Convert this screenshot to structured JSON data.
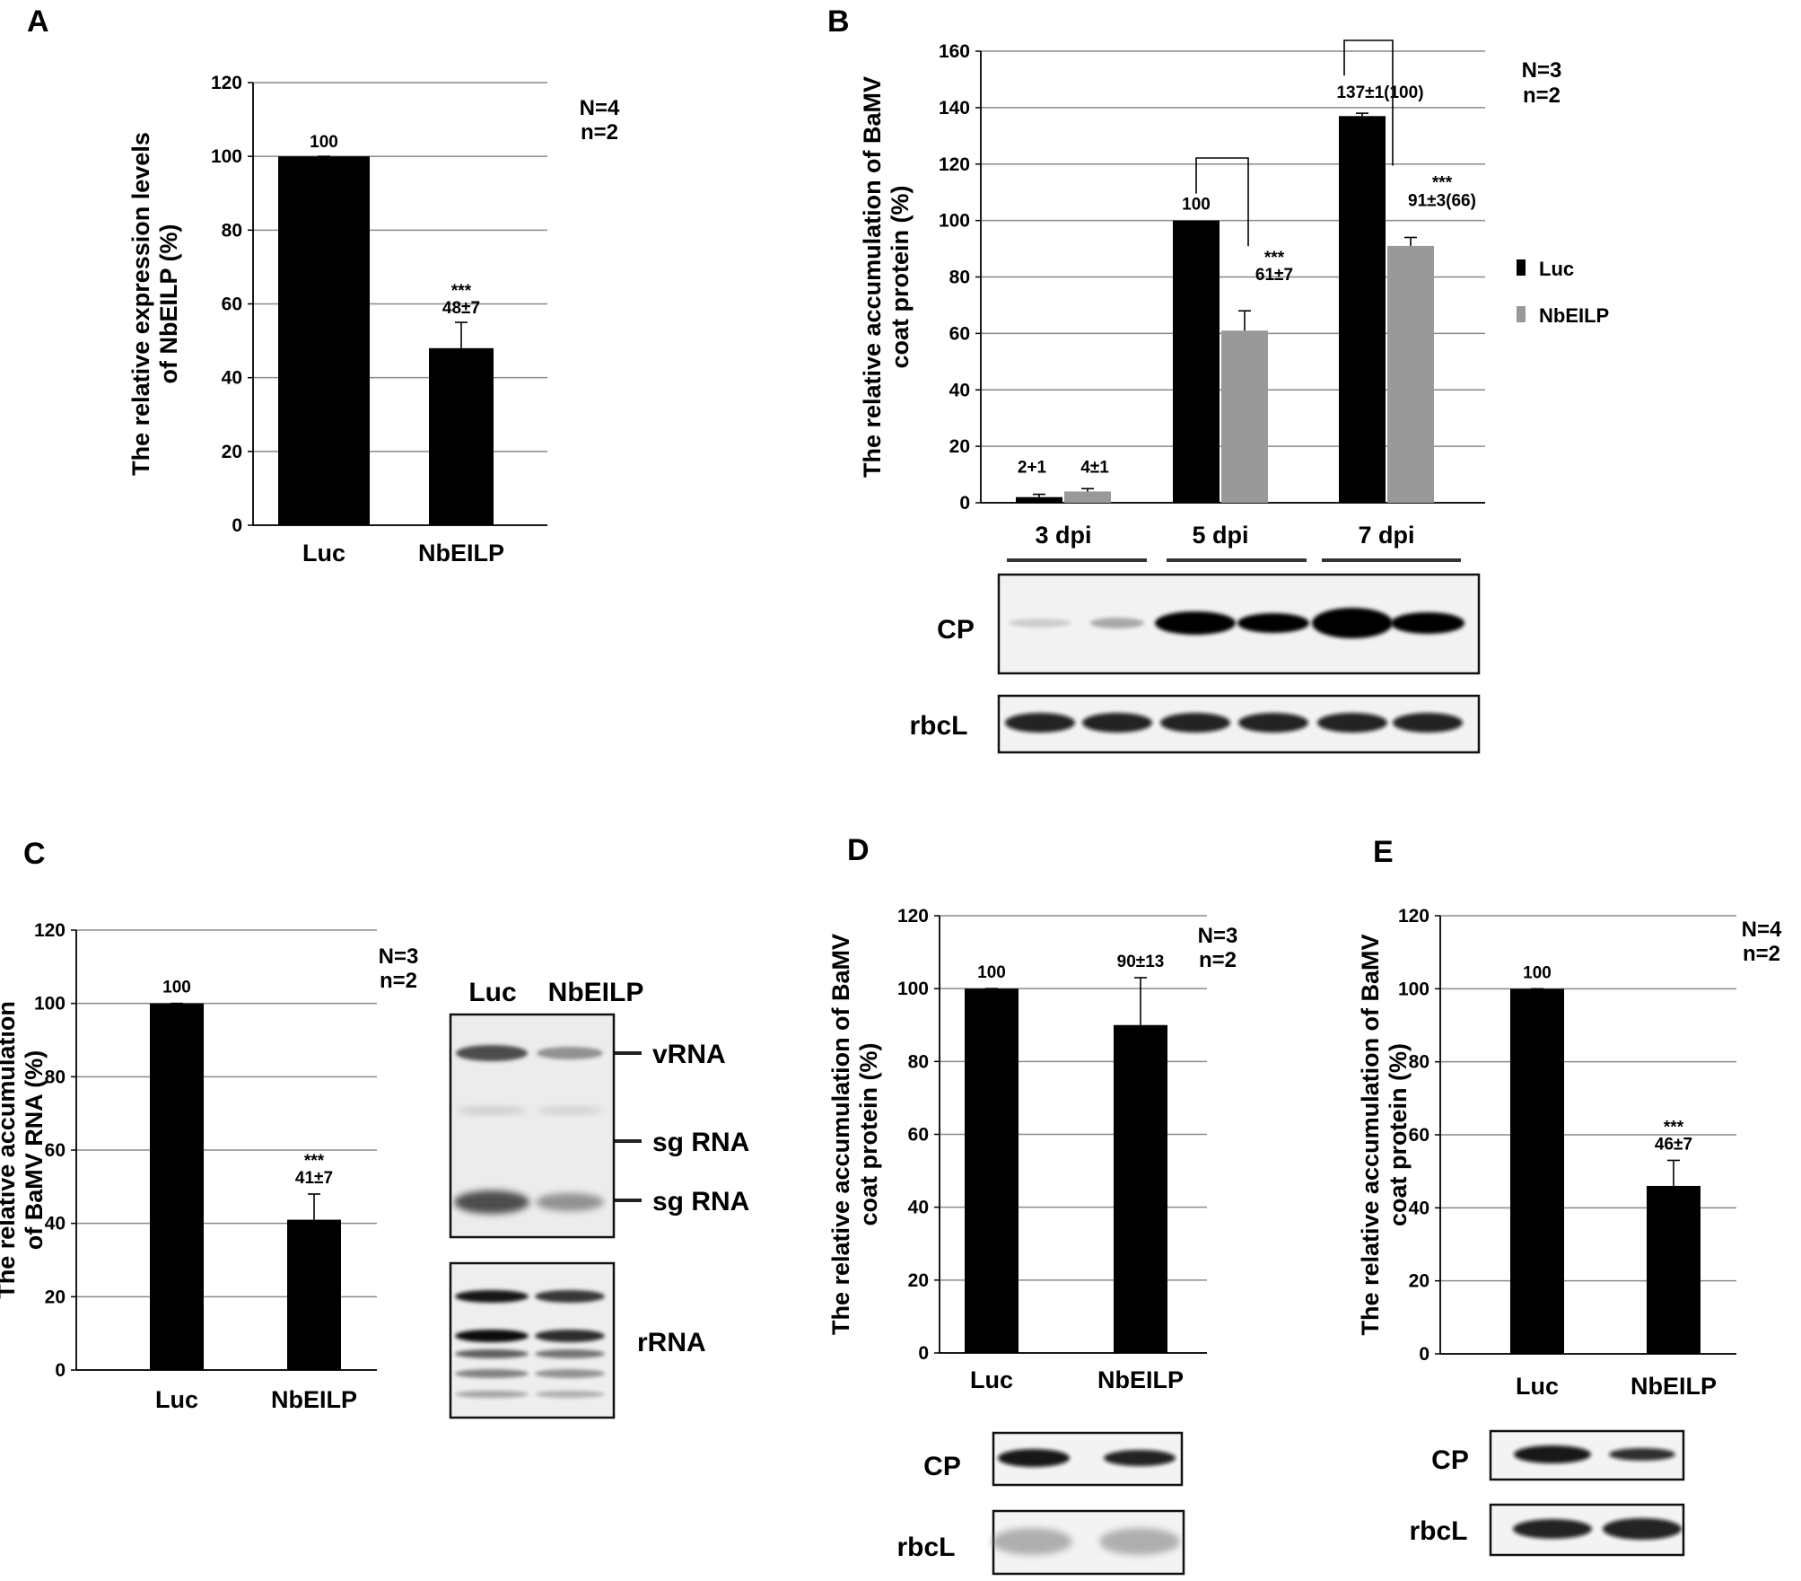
{
  "chart_data": [
    {
      "panel": "A",
      "type": "bar",
      "ylabel": "The relative expression levels of NbEILP (%)",
      "ylim": [
        0,
        120
      ],
      "yticks": [
        0,
        20,
        40,
        60,
        80,
        100,
        120
      ],
      "categories": [
        "Luc",
        "NbEILP"
      ],
      "values": [
        100,
        48
      ],
      "errors": [
        0,
        7
      ],
      "bar_labels": [
        "100",
        "48±7"
      ],
      "significance": [
        "",
        "***"
      ],
      "stats": [
        "N=4",
        "n=2"
      ],
      "bar_color": "#000000",
      "grid": true
    },
    {
      "panel": "B",
      "type": "bar",
      "ylabel": "The relative accumulation of BaMV coat protein (%)",
      "ylim": [
        0,
        160
      ],
      "yticks": [
        0,
        20,
        40,
        60,
        80,
        100,
        120,
        140,
        160
      ],
      "categories": [
        "3 dpi",
        "5 dpi",
        "7 dpi"
      ],
      "series": [
        {
          "name": "Luc",
          "color": "#000000",
          "values": [
            2,
            100,
            137
          ],
          "errors": [
            1,
            0,
            1
          ],
          "labels": [
            "2+1",
            "100",
            "137±1(100)"
          ]
        },
        {
          "name": "NbEILP",
          "color": "#999999",
          "values": [
            4,
            61,
            91
          ],
          "errors": [
            1,
            7,
            3
          ],
          "labels": [
            "4±1",
            "61±7",
            "91±3(66)"
          ]
        }
      ],
      "significance": [
        "",
        "***",
        "***"
      ],
      "stats": [
        "N=3",
        "n=2"
      ],
      "legend": "right",
      "grid": true,
      "blots": [
        "CP",
        "rbcL"
      ]
    },
    {
      "panel": "C",
      "type": "bar",
      "ylabel": "The relative accumulation of BaMV RNA (%)",
      "ylim": [
        0,
        120
      ],
      "yticks": [
        0,
        20,
        40,
        60,
        80,
        100,
        120
      ],
      "categories": [
        "Luc",
        "NbEILP"
      ],
      "values": [
        100,
        41
      ],
      "errors": [
        0,
        7
      ],
      "bar_labels": [
        "100",
        "41±7"
      ],
      "significance": [
        "",
        "***"
      ],
      "stats": [
        "N=3",
        "n=2"
      ],
      "bar_color": "#000000",
      "grid": true,
      "blot_lanes": [
        "Luc",
        "NbEILP"
      ],
      "blot_bands": [
        "vRNA",
        "sg RNA",
        "sg RNA"
      ],
      "blot_loading": "rRNA"
    },
    {
      "panel": "D",
      "type": "bar",
      "ylabel": "The relative accumulation of BaMV coat protein (%)",
      "ylim": [
        0,
        120
      ],
      "yticks": [
        0,
        20,
        40,
        60,
        80,
        100,
        120
      ],
      "categories": [
        "Luc",
        "NbEILP"
      ],
      "values": [
        100,
        90
      ],
      "errors": [
        0,
        13
      ],
      "bar_labels": [
        "100",
        "90±13"
      ],
      "significance": [
        "",
        ""
      ],
      "stats": [
        "N=3",
        "n=2"
      ],
      "bar_color": "#000000",
      "grid": true,
      "blots": [
        "CP",
        "rbcL"
      ]
    },
    {
      "panel": "E",
      "type": "bar",
      "ylabel": "The relative accumulation of BaMV coat protein (%)",
      "ylim": [
        0,
        120
      ],
      "yticks": [
        0,
        20,
        40,
        60,
        80,
        100,
        120
      ],
      "categories": [
        "Luc",
        "NbEILP"
      ],
      "values": [
        100,
        46
      ],
      "errors": [
        0,
        7
      ],
      "bar_labels": [
        "100",
        "46±7"
      ],
      "significance": [
        "",
        "***"
      ],
      "stats": [
        "N=4",
        "n=2"
      ],
      "bar_color": "#000000",
      "grid": true,
      "blots": [
        "CP",
        "rbcL"
      ]
    }
  ]
}
